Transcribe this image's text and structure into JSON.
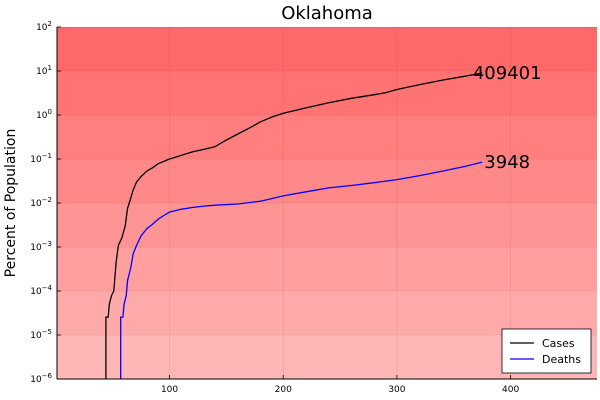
{
  "chart_data": {
    "type": "line",
    "title": "Oklahoma",
    "xlabel": "",
    "ylabel": "Percent of Population",
    "xlim": [
      1,
      476
    ],
    "ylim_log10": [
      -6,
      2
    ],
    "y_scale": "log",
    "x_ticks": [
      100,
      200,
      300,
      400
    ],
    "y_ticks": [
      {
        "exp": -6,
        "label": "10",
        "sup": "−6"
      },
      {
        "exp": -5,
        "label": "10",
        "sup": "−5"
      },
      {
        "exp": -4,
        "label": "10",
        "sup": "−4"
      },
      {
        "exp": -3,
        "label": "10",
        "sup": "−3"
      },
      {
        "exp": -2,
        "label": "10",
        "sup": "−2"
      },
      {
        "exp": -1,
        "label": "10",
        "sup": "−1"
      },
      {
        "exp": 0,
        "label": "10",
        "sup": "0"
      },
      {
        "exp": 1,
        "label": "10",
        "sup": "1"
      },
      {
        "exp": 2,
        "label": "10",
        "sup": "2"
      }
    ],
    "grid": true,
    "legend_position": "bottom-right",
    "background_band_colors": [
      "#ffb6b6",
      "#ffaaaa",
      "#ff9f9f",
      "#ff9494",
      "#ff8989",
      "#ff7e7e",
      "#ff7373",
      "#ff6868"
    ],
    "series": [
      {
        "name": "Cases",
        "color": "#000000",
        "end_label": "409401",
        "points": [
          [
            44,
            2.55e-05
          ],
          [
            46,
            2.55e-05
          ],
          [
            47,
            5e-05
          ],
          [
            49,
            8e-05
          ],
          [
            51,
            0.0001
          ],
          [
            53,
            0.00045
          ],
          [
            55,
            0.0011
          ],
          [
            58,
            0.0016
          ],
          [
            61,
            0.003
          ],
          [
            63,
            0.0075
          ],
          [
            65,
            0.011
          ],
          [
            68,
            0.02
          ],
          [
            71,
            0.03
          ],
          [
            75,
            0.04
          ],
          [
            80,
            0.053
          ],
          [
            85,
            0.063
          ],
          [
            90,
            0.078
          ],
          [
            100,
            0.1
          ],
          [
            110,
            0.12
          ],
          [
            120,
            0.145
          ],
          [
            130,
            0.165
          ],
          [
            140,
            0.19
          ],
          [
            150,
            0.27
          ],
          [
            160,
            0.37
          ],
          [
            170,
            0.5
          ],
          [
            180,
            0.7
          ],
          [
            190,
            0.9
          ],
          [
            200,
            1.1
          ],
          [
            220,
            1.45
          ],
          [
            240,
            1.9
          ],
          [
            260,
            2.4
          ],
          [
            280,
            2.9
          ],
          [
            290,
            3.2
          ],
          [
            300,
            3.8
          ],
          [
            320,
            4.9
          ],
          [
            340,
            6.2
          ],
          [
            360,
            7.6
          ],
          [
            375,
            9.0
          ]
        ]
      },
      {
        "name": "Deaths",
        "color": "#0000ff",
        "end_label": "3948",
        "points": [
          [
            57,
            2.55e-05
          ],
          [
            59,
            2.55e-05
          ],
          [
            60,
            5e-05
          ],
          [
            62,
            8e-05
          ],
          [
            63,
            0.00017
          ],
          [
            66,
            0.00035
          ],
          [
            68,
            0.0007
          ],
          [
            71,
            0.0011
          ],
          [
            75,
            0.0018
          ],
          [
            80,
            0.0026
          ],
          [
            85,
            0.0033
          ],
          [
            90,
            0.0043
          ],
          [
            95,
            0.0052
          ],
          [
            100,
            0.0062
          ],
          [
            110,
            0.0072
          ],
          [
            120,
            0.0079
          ],
          [
            130,
            0.0085
          ],
          [
            140,
            0.0089
          ],
          [
            160,
            0.0095
          ],
          [
            180,
            0.011
          ],
          [
            200,
            0.0145
          ],
          [
            220,
            0.018
          ],
          [
            240,
            0.022
          ],
          [
            260,
            0.025
          ],
          [
            280,
            0.029
          ],
          [
            300,
            0.034
          ],
          [
            320,
            0.042
          ],
          [
            340,
            0.053
          ],
          [
            360,
            0.068
          ],
          [
            375,
            0.085
          ]
        ]
      }
    ]
  }
}
